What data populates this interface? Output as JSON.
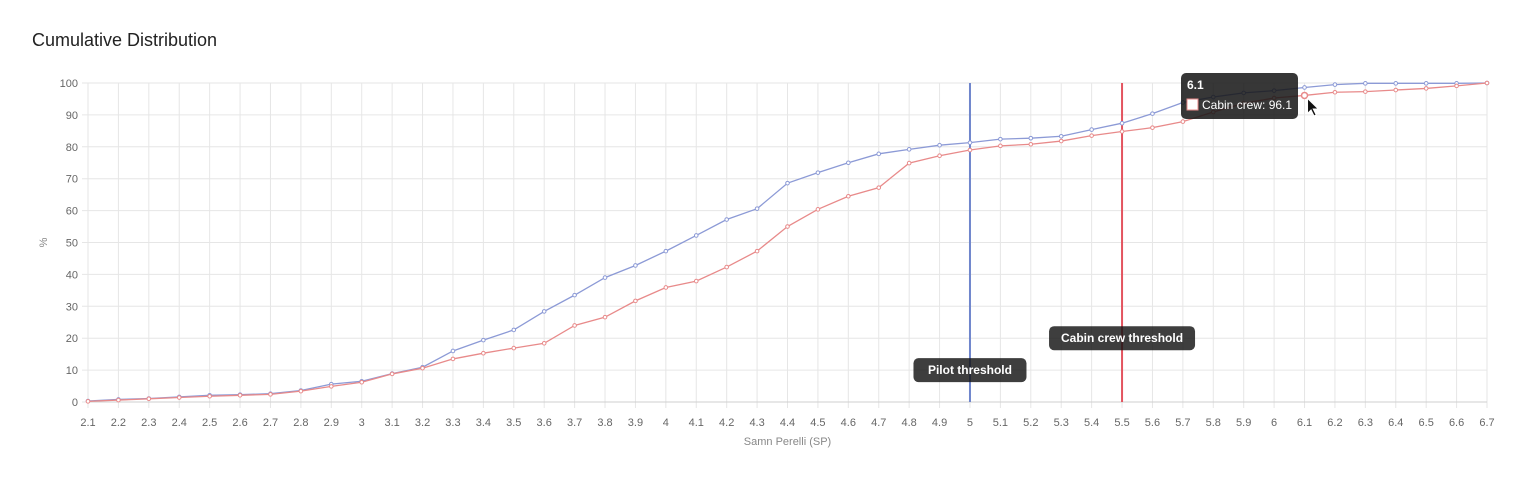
{
  "title": "Cumulative Distribution",
  "chart_data": {
    "type": "line",
    "xlabel": "Samn Perelli (SP)",
    "ylabel": "%",
    "x": [
      2.1,
      2.2,
      2.3,
      2.4,
      2.5,
      2.6,
      2.7,
      2.8,
      2.9,
      3,
      3.1,
      3.2,
      3.3,
      3.4,
      3.5,
      3.6,
      3.7,
      3.8,
      3.9,
      4,
      4.1,
      4.2,
      4.3,
      4.4,
      4.5,
      4.6,
      4.7,
      4.8,
      4.9,
      5,
      5.1,
      5.2,
      5.3,
      5.4,
      5.5,
      5.6,
      5.7,
      5.8,
      5.9,
      6,
      6.1,
      6.2,
      6.3,
      6.4,
      6.5,
      6.6,
      6.7
    ],
    "x_tick_labels": [
      "2.1",
      "2.2",
      "2.3",
      "2.4",
      "2.5",
      "2.6",
      "2.7",
      "2.8",
      "2.9",
      "3",
      "3.1",
      "3.2",
      "3.3",
      "3.4",
      "3.5",
      "3.6",
      "3.7",
      "3.8",
      "3.9",
      "4",
      "4.1",
      "4.2",
      "4.3",
      "4.4",
      "4.5",
      "4.6",
      "4.7",
      "4.8",
      "4.9",
      "5",
      "5.1",
      "5.2",
      "5.3",
      "5.4",
      "5.5",
      "5.6",
      "5.7",
      "5.8",
      "5.9",
      "6",
      "6.1",
      "6.2",
      "6.3",
      "6.4",
      "6.5",
      "6.6",
      "6.7"
    ],
    "y_tick_labels": [
      "0",
      "10",
      "20",
      "30",
      "40",
      "50",
      "60",
      "70",
      "80",
      "90",
      "100"
    ],
    "ylim": [
      0,
      100
    ],
    "grid": true,
    "series": [
      {
        "color": "#8c9ad6",
        "values": [
          0.3,
          0.8,
          1.1,
          1.6,
          2.1,
          2.3,
          2.6,
          3.6,
          5.6,
          6.5,
          8.9,
          10.9,
          16.0,
          19.4,
          22.6,
          28.4,
          33.5,
          39.0,
          42.8,
          47.3,
          52.2,
          57.2,
          60.6,
          68.6,
          71.9,
          75.0,
          77.8,
          79.2,
          80.5,
          81.3,
          82.4,
          82.7,
          83.3,
          85.4,
          87.4,
          90.4,
          93.9,
          95.6,
          96.9,
          97.6,
          98.6,
          99.5,
          99.9,
          99.9,
          99.9,
          99.9,
          100
        ]
      },
      {
        "name": "Cabin crew",
        "color": "#e88a8a",
        "values": [
          0.2,
          0.6,
          1.0,
          1.4,
          1.8,
          2.1,
          2.4,
          3.4,
          4.9,
          6.2,
          8.8,
          10.6,
          13.5,
          15.3,
          16.9,
          18.4,
          24.0,
          26.6,
          31.7,
          35.9,
          37.9,
          42.3,
          47.3,
          55.0,
          60.4,
          64.5,
          67.2,
          74.9,
          77.2,
          79.0,
          80.3,
          80.8,
          81.8,
          83.5,
          84.8,
          86.0,
          87.9,
          90.9,
          93.6,
          95.3,
          96.1,
          97.1,
          97.3,
          97.8,
          98.3,
          99.1,
          100
        ]
      }
    ],
    "annotations": [
      {
        "label": "Pilot threshold",
        "x": 5,
        "color": "#6f86cc",
        "label_y": 10
      },
      {
        "label": "Cabin crew threshold",
        "x": 5.5,
        "color": "#e3545f",
        "label_y": 20
      }
    ],
    "tooltip": {
      "title": "6.1",
      "body": "Cabin crew: 96.1",
      "x": 6.1,
      "y": 96.1
    }
  }
}
